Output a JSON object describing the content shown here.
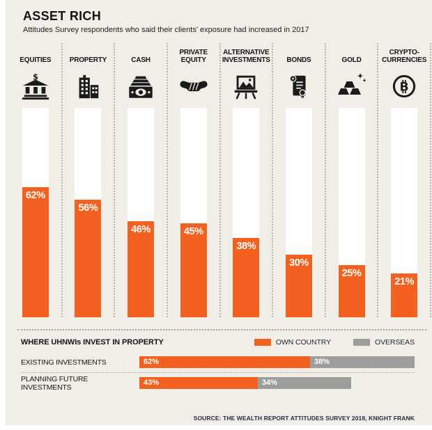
{
  "page": {
    "title": "ASSET RICH",
    "subtitle": "Attitudes Survey respondents who said their clients' exposure had increased in 2017",
    "source": "SOURCE: THE WEALTH REPORT ATTITUDES SURVEY 2018, KNIGHT FRANK"
  },
  "colors": {
    "accent": "#F2611F",
    "gray": "#9D9D9C",
    "background": "#F1EDE7",
    "track": "#FFFFFF"
  },
  "chart_data": [
    {
      "type": "bar",
      "title": "ASSET RICH",
      "subtitle": "Attitudes Survey respondents who said their clients' exposure had increased in 2017",
      "categories": [
        "EQUITIES",
        "PROPERTY",
        "CASH",
        "PRIVATE EQUITY",
        "ALTERNATIVE INVESTMENTS",
        "BONDS",
        "GOLD",
        "CRYPTO-CURRENCIES"
      ],
      "values": [
        62,
        56,
        46,
        45,
        38,
        30,
        25,
        21
      ],
      "unit": "%",
      "ylim": [
        0,
        100
      ],
      "grid": false,
      "legend_position": "none"
    },
    {
      "type": "bar",
      "orientation": "horizontal",
      "title": "WHERE UHNWIs INVEST IN PROPERTY",
      "categories": [
        "EXISTING INVESTMENTS",
        "PLANNING FUTURE INVESTMENTS"
      ],
      "series": [
        {
          "name": "OWN COUNTRY",
          "values": [
            62,
            43
          ],
          "color": "#F2611F"
        },
        {
          "name": "OVERSEAS",
          "values": [
            38,
            34
          ],
          "color": "#9D9D9C"
        }
      ],
      "unit": "%",
      "xlim": [
        0,
        100
      ],
      "legend_position": "top-right"
    }
  ],
  "ui": {
    "columns": [
      {
        "label": "EQUITIES",
        "icon": "bank-icon",
        "value": 62,
        "display": "62%"
      },
      {
        "label": "PROPERTY",
        "icon": "building-icon",
        "value": 56,
        "display": "56%"
      },
      {
        "label": "CASH",
        "icon": "cash-icon",
        "value": 46,
        "display": "46%"
      },
      {
        "label": "PRIVATE\nEQUITY",
        "icon": "handshake-icon",
        "value": 45,
        "display": "45%"
      },
      {
        "label": "ALTERNATIVE\nINVESTMENTS",
        "icon": "easel-icon",
        "value": 38,
        "display": "38%"
      },
      {
        "label": "BONDS",
        "icon": "scroll-icon",
        "value": 30,
        "display": "30%"
      },
      {
        "label": "GOLD",
        "icon": "gold-bars-icon",
        "value": 25,
        "display": "25%"
      },
      {
        "label": "CRYPTO-\nCURRENCIES",
        "icon": "bitcoin-icon",
        "value": 21,
        "display": "21%"
      }
    ],
    "property_section": {
      "heading": "WHERE UHNWIs INVEST IN PROPERTY",
      "legend": [
        {
          "label": "OWN COUNTRY",
          "color": "#F2611F"
        },
        {
          "label": "OVERSEAS",
          "color": "#9D9D9C"
        }
      ],
      "rows": [
        {
          "label": "EXISTING INVESTMENTS",
          "own_pct": 62,
          "own_display": "62%",
          "overseas_pct": 38,
          "overseas_display": "38%"
        },
        {
          "label": "PLANNING FUTURE INVESTMENTS",
          "own_pct": 43,
          "own_display": "43%",
          "overseas_pct": 34,
          "overseas_display": "34%"
        }
      ]
    }
  }
}
